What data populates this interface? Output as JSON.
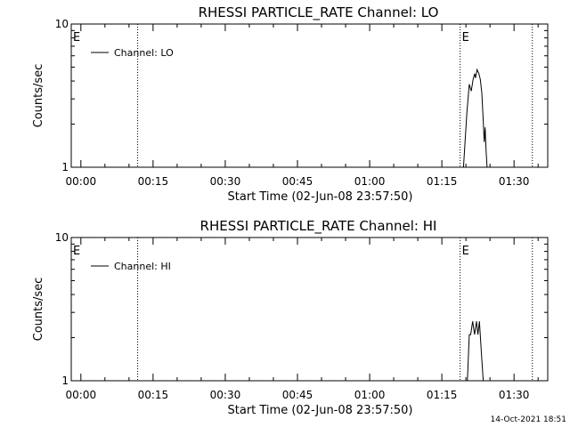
{
  "chart_data": [
    {
      "type": "line",
      "title": "RHESSI PARTICLE_RATE Channel: LO",
      "xlabel": "Start Time (02-Jun-08 23:57:50)",
      "ylabel": "Counts/sec",
      "y_scale": "log",
      "ylim": [
        1,
        10
      ],
      "y_ticks": [
        "1",
        "10"
      ],
      "xlim_minutes": [
        -2.0,
        97.0
      ],
      "x_ticks": [
        "00:00",
        "00:15",
        "00:30",
        "00:45",
        "01:00",
        "01:15",
        "01:30"
      ],
      "grid": false,
      "legend_position": "top-left",
      "series": [
        {
          "name": "Channel: LO",
          "x_minutes": [
            79.5,
            80.2,
            80.7,
            81.1,
            81.5,
            81.8,
            82.0,
            82.3,
            82.7,
            83.0,
            83.3,
            83.6,
            83.8,
            84.0,
            84.2,
            84.4
          ],
          "values": [
            1.0,
            2.4,
            3.8,
            3.4,
            4.1,
            4.5,
            4.2,
            4.8,
            4.5,
            4.1,
            3.3,
            2.1,
            1.5,
            1.9,
            1.3,
            1.0
          ]
        }
      ],
      "event_markers": [
        {
          "label": "E",
          "x_minutes": -2.0
        },
        {
          "label": "",
          "x_minutes": 11.8
        },
        {
          "label": "E",
          "x_minutes": 78.8
        },
        {
          "label": "",
          "x_minutes": 93.8
        }
      ]
    },
    {
      "type": "line",
      "title": "RHESSI PARTICLE_RATE Channel: HI",
      "xlabel": "Start Time (02-Jun-08 23:57:50)",
      "ylabel": "Counts/sec",
      "y_scale": "log",
      "ylim": [
        1,
        10
      ],
      "y_ticks": [
        "1",
        "10"
      ],
      "xlim_minutes": [
        -2.0,
        97.0
      ],
      "x_ticks": [
        "00:00",
        "00:15",
        "00:30",
        "00:45",
        "01:00",
        "01:15",
        "01:30"
      ],
      "grid": false,
      "legend_position": "top-left",
      "series": [
        {
          "name": "Channel: HI",
          "x_minutes": [
            80.3,
            80.7,
            81.0,
            81.4,
            81.8,
            82.2,
            82.5,
            82.8,
            83.2,
            83.6,
            84.0
          ],
          "values": [
            1.0,
            2.1,
            2.1,
            2.6,
            2.1,
            2.6,
            2.1,
            2.6,
            1.6,
            1.0,
            1.0
          ]
        }
      ],
      "event_markers": [
        {
          "label": "E",
          "x_minutes": -2.0
        },
        {
          "label": "",
          "x_minutes": 11.8
        },
        {
          "label": "E",
          "x_minutes": 78.8
        },
        {
          "label": "",
          "x_minutes": 93.8
        }
      ]
    }
  ],
  "footer": {
    "timestamp": "14-Oct-2021 18:51"
  }
}
